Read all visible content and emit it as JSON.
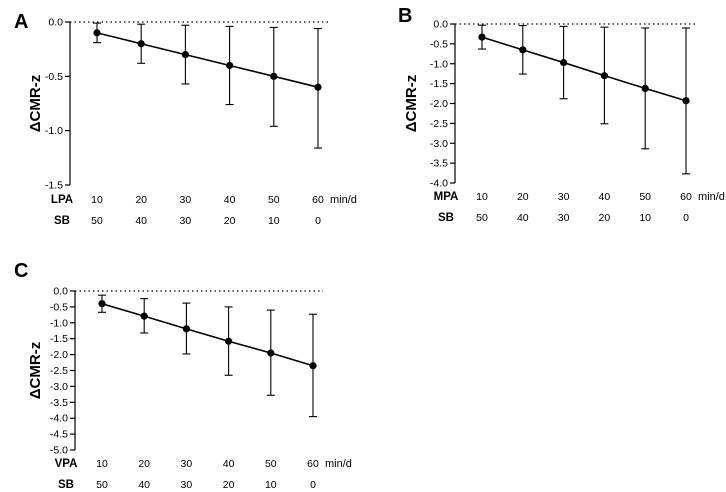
{
  "figure": {
    "unit_label": "min/d",
    "sb_label": "SB"
  },
  "chart_data": [
    {
      "type": "line",
      "panel": "A",
      "activity": "LPA",
      "ylabel": "ΔCMR-z",
      "ylim": [
        -1.5,
        0.0
      ],
      "yticks": [
        0.0,
        -0.5,
        -1.0,
        -1.5
      ],
      "ytick_labels": [
        "0.0",
        "-0.5",
        "-1.0",
        "-1.5"
      ],
      "x": [
        10,
        20,
        30,
        40,
        50,
        60
      ],
      "sb": [
        50,
        40,
        30,
        20,
        10,
        0
      ],
      "y": [
        -0.1,
        -0.2,
        -0.3,
        -0.4,
        -0.5,
        -0.6
      ],
      "err_low": [
        -0.19,
        -0.38,
        -0.57,
        -0.76,
        -0.96,
        -1.16
      ],
      "err_high": [
        -0.01,
        -0.02,
        -0.03,
        -0.04,
        -0.05,
        -0.06
      ],
      "reference_line": 0.0
    },
    {
      "type": "line",
      "panel": "B",
      "activity": "MPA",
      "ylabel": "ΔCMR-z",
      "ylim": [
        -4.0,
        0.0
      ],
      "yticks": [
        0.0,
        -0.5,
        -1.0,
        -1.5,
        -2.0,
        -2.5,
        -3.0,
        -3.5,
        -4.0
      ],
      "ytick_labels": [
        "0.0",
        "-0.5",
        "-1.0",
        "-1.5",
        "-2.0",
        "-2.5",
        "-3.0",
        "-3.5",
        "-4.0"
      ],
      "x": [
        10,
        20,
        30,
        40,
        50,
        60
      ],
      "sb": [
        50,
        40,
        30,
        20,
        10,
        0
      ],
      "y": [
        -0.33,
        -0.65,
        -0.97,
        -1.3,
        -1.62,
        -1.93
      ],
      "err_low": [
        -0.63,
        -1.26,
        -1.88,
        -2.51,
        -3.14,
        -3.77
      ],
      "err_high": [
        -0.03,
        -0.04,
        -0.06,
        -0.08,
        -0.1,
        -0.1
      ],
      "reference_line": 0.0
    },
    {
      "type": "line",
      "panel": "C",
      "activity": "VPA",
      "ylabel": "ΔCMR-z",
      "ylim": [
        -5.0,
        0.0
      ],
      "yticks": [
        0.0,
        -0.5,
        -1.0,
        -1.5,
        -2.0,
        -2.5,
        -3.0,
        -3.5,
        -4.0,
        -4.5,
        -5.0
      ],
      "ytick_labels": [
        "0.0",
        "-0.5",
        "-1.0",
        "-1.5",
        "-2.0",
        "-2.5",
        "-3.0",
        "-3.5",
        "-4.0",
        "-4.5",
        "-5.0"
      ],
      "x": [
        10,
        20,
        30,
        40,
        50,
        60
      ],
      "sb": [
        50,
        40,
        30,
        20,
        10,
        0
      ],
      "y": [
        -0.4,
        -0.79,
        -1.19,
        -1.58,
        -1.95,
        -2.35
      ],
      "err_low": [
        -0.67,
        -1.32,
        -1.98,
        -2.65,
        -3.28,
        -3.95
      ],
      "err_high": [
        -0.13,
        -0.24,
        -0.38,
        -0.5,
        -0.6,
        -0.73
      ],
      "reference_line": 0.0
    }
  ]
}
